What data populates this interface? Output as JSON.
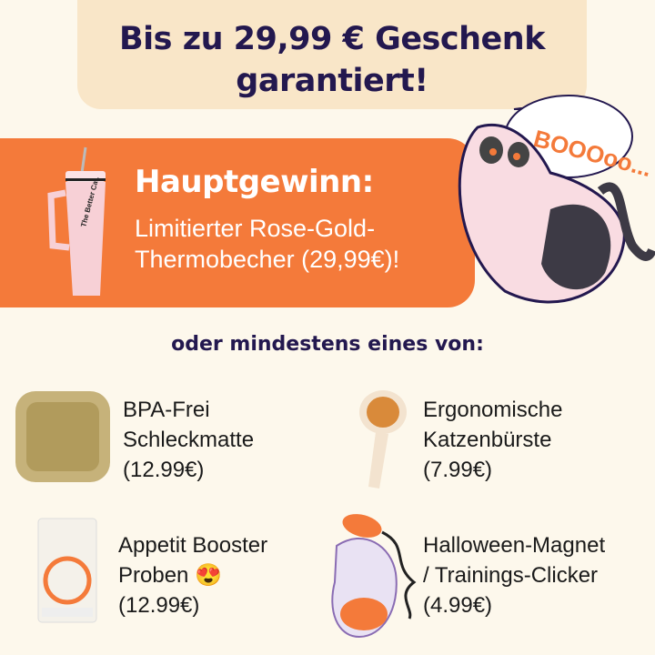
{
  "headline": {
    "line1": "Bis zu 29,99 € Geschenk",
    "line2": "garantiert!"
  },
  "main_prize": {
    "title": "Hauptgewinn:",
    "line1": "Limitierter Rose-Gold-",
    "line2": "Thermobecher (29,99€)!",
    "product_brand": "The Better Cat."
  },
  "cat_bubble": "BOOOoo...",
  "subheading": "oder mindestens eines von:",
  "items": [
    {
      "line1": "BPA-Frei",
      "line2": "Schleckmatte",
      "line3": "(12.99€)"
    },
    {
      "line1": "Ergonomische",
      "line2": "Katzenbürste",
      "line3": "(7.99€)"
    },
    {
      "line1": "Appetit Booster",
      "line2": "Proben 😍",
      "line3": "(12.99€)"
    },
    {
      "line1": "Halloween-Magnet",
      "line2": "/ Trainings-Clicker",
      "line3": "(4.99€)"
    }
  ],
  "colors": {
    "background": "#fdf8ec",
    "banner": "#f9e6c8",
    "navy": "#23184f",
    "orange": "#f47a3a"
  }
}
